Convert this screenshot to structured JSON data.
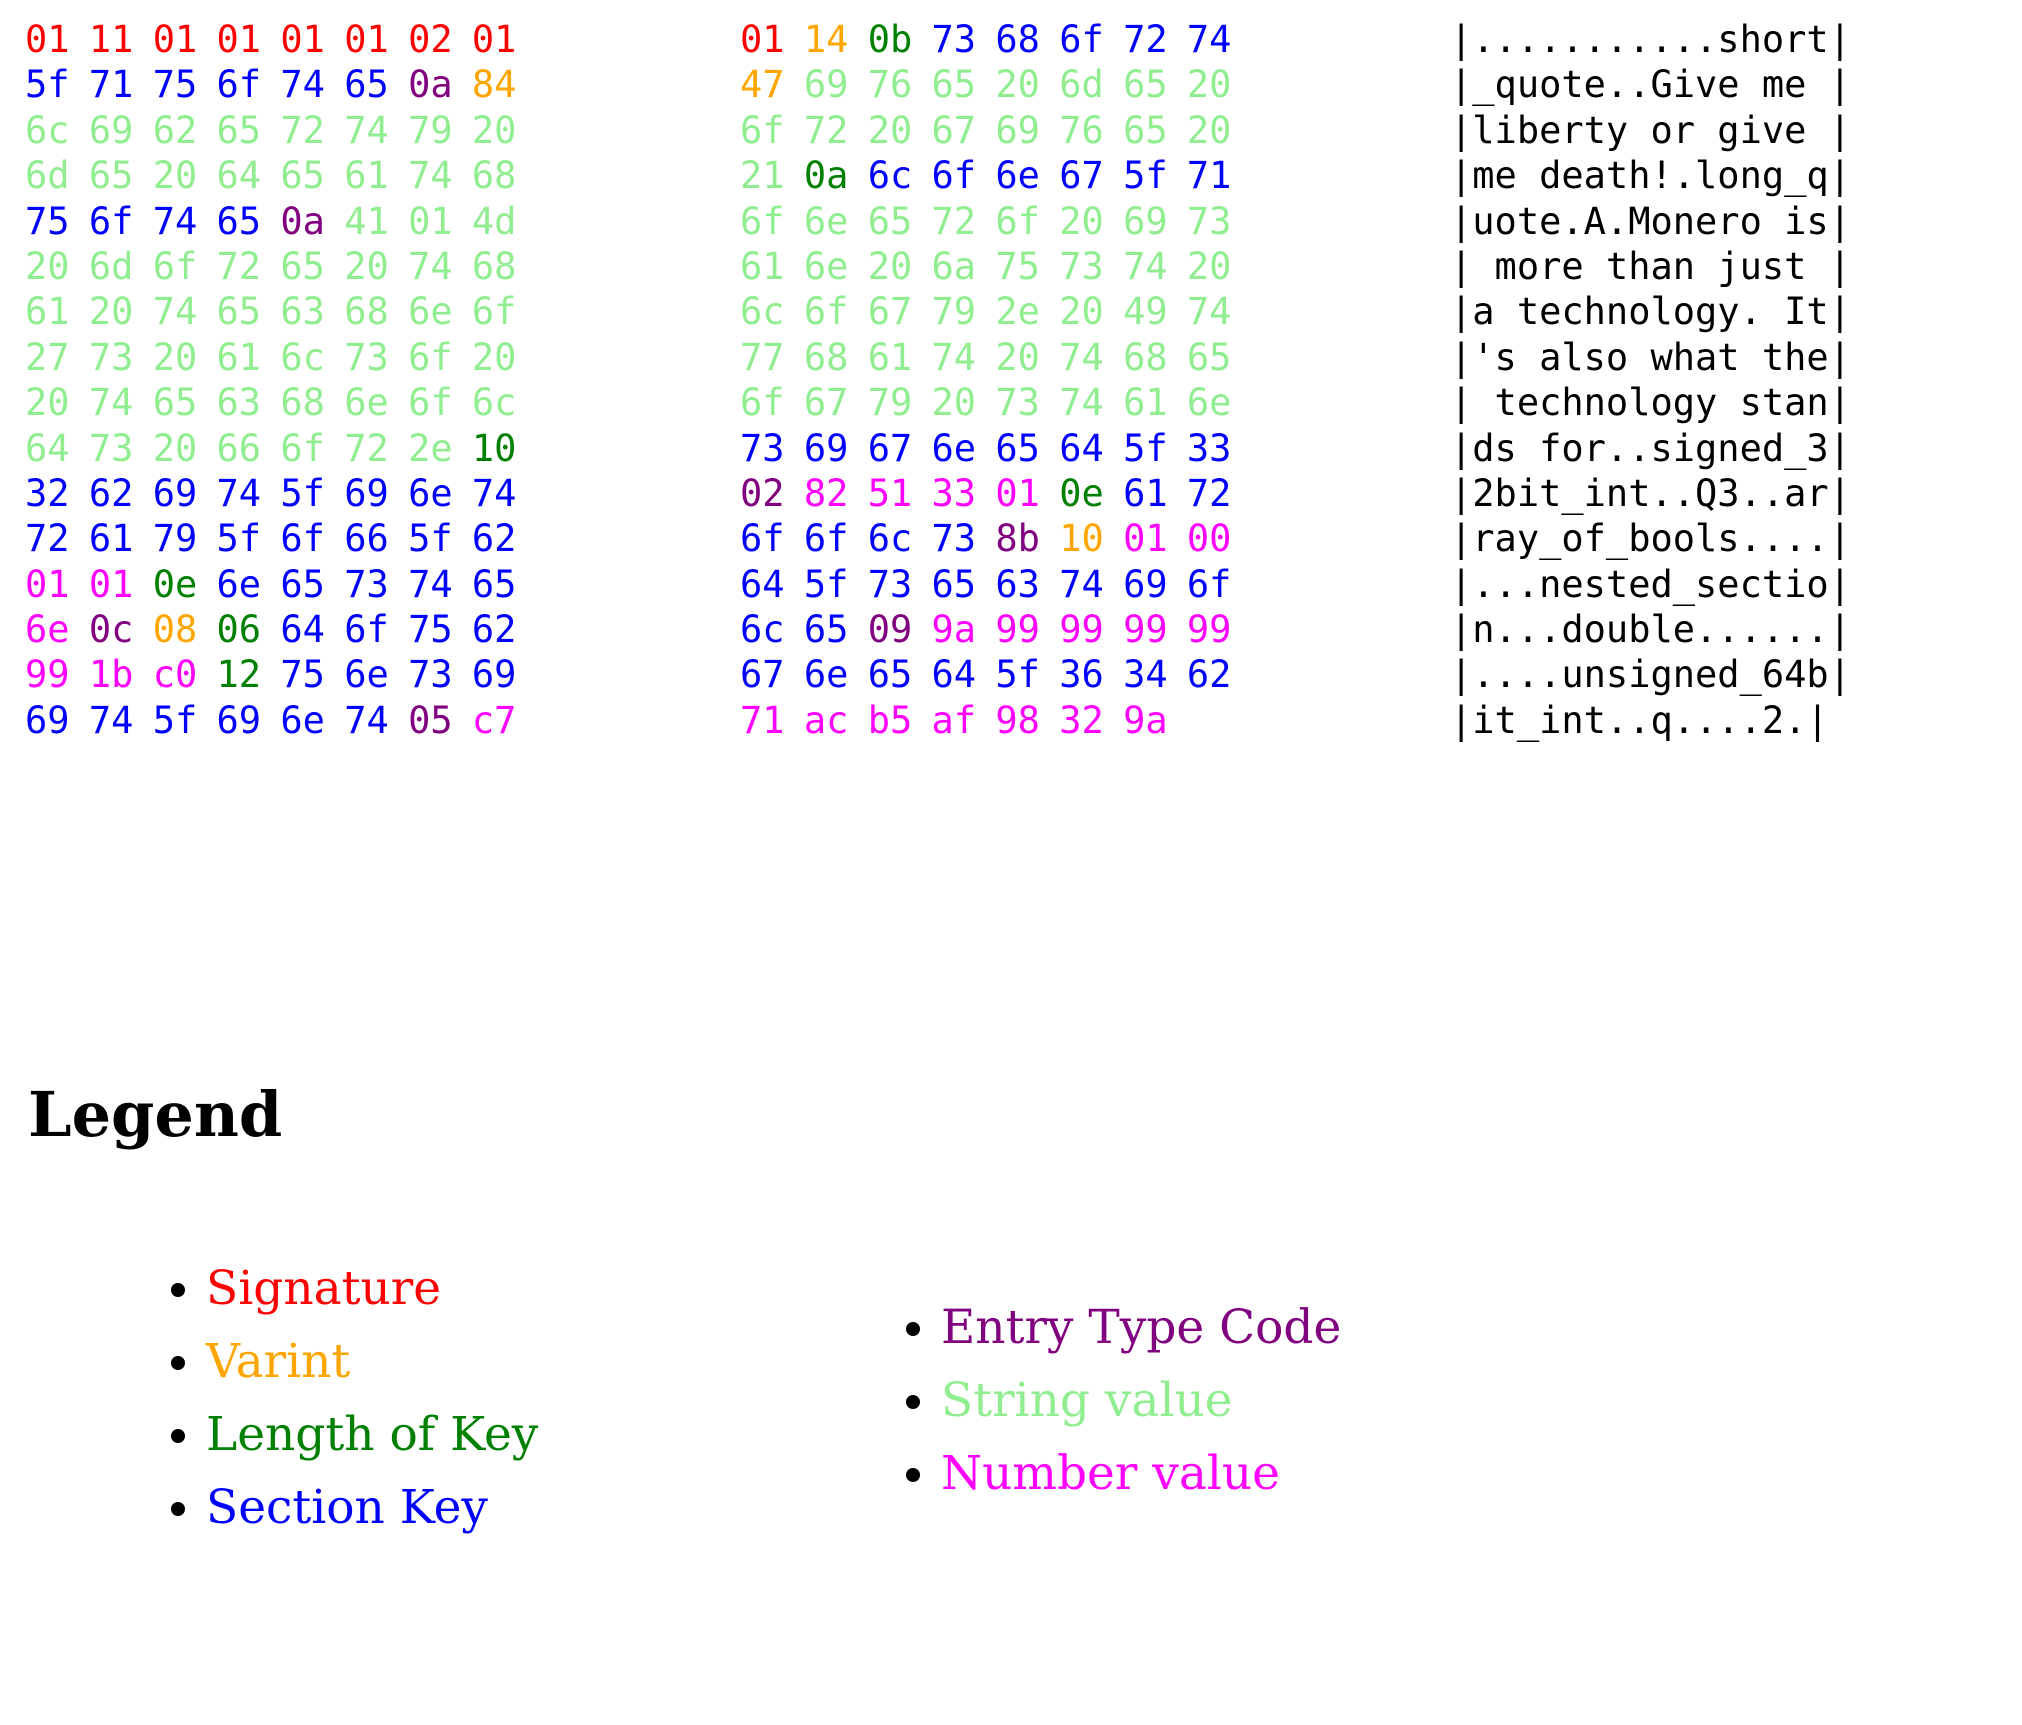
{
  "palette": {
    "signature": "#ff0000",
    "varint": "#ffa500",
    "length_of_key": "#008000",
    "section_key": "#0000ff",
    "entry_type_code": "#800080",
    "string_value": "#90ee90",
    "number_value": "#ff00ff",
    "ascii_text": "#000000"
  },
  "hexdump": {
    "color_key": {
      "r": "signature",
      "o": "varint",
      "g": "length_of_key",
      "b": "section_key",
      "p": "entry_type_code",
      "s": "string_value",
      "m": "number_value"
    },
    "rows": [
      {
        "left": [
          "01:r",
          "11:r",
          "01:r",
          "01:r",
          "01:r",
          "01:r",
          "02:r",
          "01:r"
        ],
        "right": [
          "01:r",
          "14:o",
          "0b:g",
          "73:b",
          "68:b",
          "6f:b",
          "72:b",
          "74:b"
        ],
        "ascii": "|...........short|"
      },
      {
        "left": [
          "5f:b",
          "71:b",
          "75:b",
          "6f:b",
          "74:b",
          "65:b",
          "0a:p",
          "84:o"
        ],
        "right": [
          "47:o",
          "69:s",
          "76:s",
          "65:s",
          "20:s",
          "6d:s",
          "65:s",
          "20:s"
        ],
        "ascii": "|_quote..Give me |"
      },
      {
        "left": [
          "6c:s",
          "69:s",
          "62:s",
          "65:s",
          "72:s",
          "74:s",
          "79:s",
          "20:s"
        ],
        "right": [
          "6f:s",
          "72:s",
          "20:s",
          "67:s",
          "69:s",
          "76:s",
          "65:s",
          "20:s"
        ],
        "ascii": "|liberty or give |"
      },
      {
        "left": [
          "6d:s",
          "65:s",
          "20:s",
          "64:s",
          "65:s",
          "61:s",
          "74:s",
          "68:s"
        ],
        "right": [
          "21:s",
          "0a:g",
          "6c:b",
          "6f:b",
          "6e:b",
          "67:b",
          "5f:b",
          "71:b"
        ],
        "ascii": "|me death!.long_q|"
      },
      {
        "left": [
          "75:b",
          "6f:b",
          "74:b",
          "65:b",
          "0a:p",
          "41:s",
          "01:s",
          "4d:s"
        ],
        "right": [
          "6f:s",
          "6e:s",
          "65:s",
          "72:s",
          "6f:s",
          "20:s",
          "69:s",
          "73:s"
        ],
        "ascii": "|uote.A.Monero is|"
      },
      {
        "left": [
          "20:s",
          "6d:s",
          "6f:s",
          "72:s",
          "65:s",
          "20:s",
          "74:s",
          "68:s"
        ],
        "right": [
          "61:s",
          "6e:s",
          "20:s",
          "6a:s",
          "75:s",
          "73:s",
          "74:s",
          "20:s"
        ],
        "ascii": "| more than just |"
      },
      {
        "left": [
          "61:s",
          "20:s",
          "74:s",
          "65:s",
          "63:s",
          "68:s",
          "6e:s",
          "6f:s"
        ],
        "right": [
          "6c:s",
          "6f:s",
          "67:s",
          "79:s",
          "2e:s",
          "20:s",
          "49:s",
          "74:s"
        ],
        "ascii": "|a technology. It|"
      },
      {
        "left": [
          "27:s",
          "73:s",
          "20:s",
          "61:s",
          "6c:s",
          "73:s",
          "6f:s",
          "20:s"
        ],
        "right": [
          "77:s",
          "68:s",
          "61:s",
          "74:s",
          "20:s",
          "74:s",
          "68:s",
          "65:s"
        ],
        "ascii": "|'s also what the|"
      },
      {
        "left": [
          "20:s",
          "74:s",
          "65:s",
          "63:s",
          "68:s",
          "6e:s",
          "6f:s",
          "6c:s"
        ],
        "right": [
          "6f:s",
          "67:s",
          "79:s",
          "20:s",
          "73:s",
          "74:s",
          "61:s",
          "6e:s"
        ],
        "ascii": "| technology stan|"
      },
      {
        "left": [
          "64:s",
          "73:s",
          "20:s",
          "66:s",
          "6f:s",
          "72:s",
          "2e:s",
          "10:g"
        ],
        "right": [
          "73:b",
          "69:b",
          "67:b",
          "6e:b",
          "65:b",
          "64:b",
          "5f:b",
          "33:b"
        ],
        "ascii": "|ds for..signed_3|"
      },
      {
        "left": [
          "32:b",
          "62:b",
          "69:b",
          "74:b",
          "5f:b",
          "69:b",
          "6e:b",
          "74:b"
        ],
        "right": [
          "02:p",
          "82:m",
          "51:m",
          "33:m",
          "01:m",
          "0e:g",
          "61:b",
          "72:b"
        ],
        "ascii": "|2bit_int..Q3..ar|"
      },
      {
        "left": [
          "72:b",
          "61:b",
          "79:b",
          "5f:b",
          "6f:b",
          "66:b",
          "5f:b",
          "62:b"
        ],
        "right": [
          "6f:b",
          "6f:b",
          "6c:b",
          "73:b",
          "8b:p",
          "10:o",
          "01:m",
          "00:m"
        ],
        "ascii": "|ray_of_bools....|"
      },
      {
        "left": [
          "01:m",
          "01:m",
          "0e:g",
          "6e:b",
          "65:b",
          "73:b",
          "74:b",
          "65:b"
        ],
        "right": [
          "64:b",
          "5f:b",
          "73:b",
          "65:b",
          "63:b",
          "74:b",
          "69:b",
          "6f:b"
        ],
        "ascii": "|...nested_sectio|"
      },
      {
        "left": [
          "6e:m",
          "0c:p",
          "08:o",
          "06:g",
          "64:b",
          "6f:b",
          "75:b",
          "62:b"
        ],
        "right": [
          "6c:b",
          "65:b",
          "09:p",
          "9a:m",
          "99:m",
          "99:m",
          "99:m",
          "99:m"
        ],
        "ascii": "|n...double......|"
      },
      {
        "left": [
          "99:m",
          "1b:m",
          "c0:m",
          "12:g",
          "75:b",
          "6e:b",
          "73:b",
          "69:b"
        ],
        "right": [
          "67:b",
          "6e:b",
          "65:b",
          "64:b",
          "5f:b",
          "36:b",
          "34:b",
          "62:b"
        ],
        "ascii": "|....unsigned_64b|"
      },
      {
        "left": [
          "69:b",
          "74:b",
          "5f:b",
          "69:b",
          "6e:b",
          "74:b",
          "05:p",
          "c7:m"
        ],
        "right": [
          "71:m",
          "ac:m",
          "b5:m",
          "af:m",
          "98:m",
          "32:m",
          "9a:m"
        ],
        "ascii": "|it_int..q....2.|"
      }
    ]
  },
  "legend": {
    "title": "Legend",
    "columns": [
      {
        "items": [
          {
            "label": "Signature",
            "color_role": "signature"
          },
          {
            "label": "Varint",
            "color_role": "varint"
          },
          {
            "label": "Length of Key",
            "color_role": "length_of_key"
          },
          {
            "label": "Section Key",
            "color_role": "section_key"
          }
        ]
      },
      {
        "items": [
          {
            "label": "Entry Type Code",
            "color_role": "entry_type_code"
          },
          {
            "label": "String value",
            "color_role": "string_value"
          },
          {
            "label": "Number value",
            "color_role": "number_value"
          }
        ]
      }
    ]
  }
}
